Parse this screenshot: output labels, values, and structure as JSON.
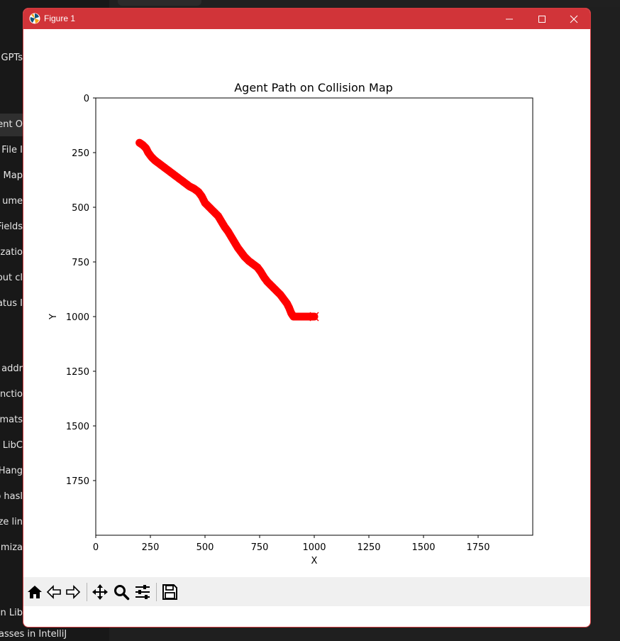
{
  "window": {
    "title": "Figure 1"
  },
  "background_list": [
    "GPTs",
    "ent O",
    "File I",
    "n Map",
    "ume",
    "Fields",
    "nizatio",
    "out cl",
    "atus I",
    "addr",
    "nctio",
    "rmats",
    "n LibC",
    "Hang",
    "o hasl",
    "ize lin",
    "timiza",
    "in Lib",
    "asses in IntelliJ"
  ],
  "chart_data": {
    "type": "scatter",
    "title": "Agent Path on Collision Map",
    "xlabel": "X",
    "ylabel": "Y",
    "xlim": [
      0,
      2000
    ],
    "ylim": [
      2000,
      0
    ],
    "y_inverted": true,
    "xticks": [
      0,
      250,
      500,
      750,
      1000,
      1250,
      1500,
      1750
    ],
    "yticks": [
      0,
      250,
      500,
      750,
      1000,
      1250,
      1500,
      1750
    ],
    "grid": false,
    "series": [
      {
        "marker": "o",
        "color": "#ff0000",
        "x": [
          200,
          215,
          230,
          240,
          255,
          270,
          290,
          310,
          330,
          350,
          370,
          390,
          410,
          430,
          450,
          470,
          485,
          500,
          520,
          540,
          560,
          575,
          590,
          605,
          620,
          635,
          650,
          665,
          680,
          700,
          720,
          740,
          755,
          770,
          785,
          800,
          815,
          830,
          845,
          860,
          875,
          885,
          895,
          905,
          920,
          940,
          960,
          980,
          1000
        ],
        "y": [
          205,
          215,
          230,
          250,
          270,
          285,
          300,
          315,
          330,
          345,
          360,
          375,
          390,
          405,
          415,
          430,
          450,
          480,
          500,
          520,
          540,
          565,
          590,
          610,
          635,
          660,
          685,
          705,
          725,
          745,
          760,
          775,
          795,
          820,
          840,
          855,
          870,
          885,
          900,
          920,
          940,
          960,
          985,
          1000,
          1000,
          1000,
          1000,
          1000,
          1000
        ]
      }
    ],
    "end_marker": {
      "marker": "x",
      "x": 1000,
      "y": 1000,
      "color": "#ff0000"
    }
  },
  "toolbar": {
    "buttons": [
      "home-icon",
      "back-icon",
      "forward-icon",
      "pan-icon",
      "zoom-icon",
      "configure-subplots-icon",
      "save-icon"
    ]
  },
  "colors": {
    "titlebar": "#d13439",
    "path": "#ff0000",
    "toolbar": "#f0f0f0"
  }
}
